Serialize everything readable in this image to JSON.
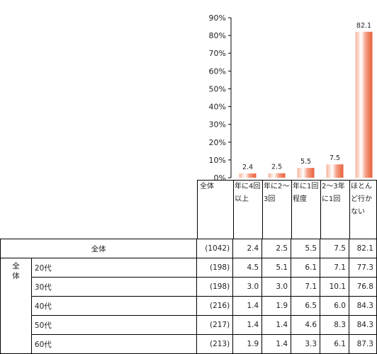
{
  "chart_data": {
    "type": "bar",
    "categories": [
      "年に4回\n以上",
      "年に2～\n3回",
      "年に1回\n程度",
      "2～3年\nに1回",
      "ほとん\nど行か\nない"
    ],
    "values": [
      2.4,
      2.5,
      5.5,
      7.5,
      82.1
    ],
    "ylim": [
      0,
      90
    ],
    "yticks": [
      "0%",
      "10%",
      "20%",
      "30%",
      "40%",
      "50%",
      "60%",
      "70%",
      "80%",
      "90%"
    ],
    "grid": false,
    "bar_color": "#ef7b56"
  },
  "table": {
    "header_label": "全体",
    "total": {
      "label": "全体",
      "n": "(1042)",
      "values": [
        "2.4",
        "2.5",
        "5.5",
        "7.5",
        "82.1"
      ]
    },
    "group_label": "全\n体",
    "rows": [
      {
        "label": "20代",
        "n": "(198)",
        "values": [
          "4.5",
          "5.1",
          "6.1",
          "7.1",
          "77.3"
        ]
      },
      {
        "label": "30代",
        "n": "(198)",
        "values": [
          "3.0",
          "3.0",
          "7.1",
          "10.1",
          "76.8"
        ]
      },
      {
        "label": "40代",
        "n": "(216)",
        "values": [
          "1.4",
          "1.9",
          "6.5",
          "6.0",
          "84.3"
        ]
      },
      {
        "label": "50代",
        "n": "(217)",
        "values": [
          "1.4",
          "1.4",
          "4.6",
          "8.3",
          "84.3"
        ]
      },
      {
        "label": "60代",
        "n": "(213)",
        "values": [
          "1.9",
          "1.4",
          "3.3",
          "6.1",
          "87.3"
        ]
      }
    ]
  }
}
